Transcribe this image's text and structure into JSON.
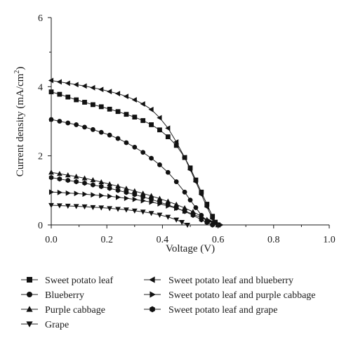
{
  "chart_data": {
    "type": "line",
    "xlabel": "Voltage (V)",
    "ylabel_main": "Current density (mA/cm",
    "ylabel_sup": "2",
    "ylabel_tail": ")",
    "xlim": [
      0.0,
      1.0
    ],
    "ylim": [
      0,
      6
    ],
    "xticks": [
      "0.0",
      "0.2",
      "0.4",
      "0.6",
      "0.8",
      "1.0"
    ],
    "yticks": [
      "0",
      "2",
      "4",
      "6"
    ],
    "grid": false,
    "legend_position": "below",
    "series": [
      {
        "name": "Sweet potato leaf",
        "marker": "square",
        "x": [
          0.0,
          0.03,
          0.06,
          0.09,
          0.12,
          0.15,
          0.18,
          0.21,
          0.24,
          0.27,
          0.3,
          0.33,
          0.36,
          0.39,
          0.42,
          0.45,
          0.48,
          0.5,
          0.52,
          0.54,
          0.56,
          0.58,
          0.59,
          0.6
        ],
        "y": [
          3.85,
          3.78,
          3.7,
          3.62,
          3.55,
          3.48,
          3.42,
          3.35,
          3.28,
          3.2,
          3.12,
          3.02,
          2.9,
          2.75,
          2.55,
          2.3,
          1.95,
          1.65,
          1.3,
          0.95,
          0.6,
          0.25,
          0.08,
          0.0
        ]
      },
      {
        "name": "Blueberry",
        "marker": "circle",
        "x": [
          0.0,
          0.03,
          0.06,
          0.09,
          0.12,
          0.15,
          0.18,
          0.21,
          0.24,
          0.27,
          0.3,
          0.33,
          0.36,
          0.39,
          0.42,
          0.45,
          0.48,
          0.5,
          0.52,
          0.54,
          0.56,
          0.58
        ],
        "y": [
          3.05,
          3.0,
          2.95,
          2.9,
          2.83,
          2.76,
          2.68,
          2.6,
          2.5,
          2.38,
          2.25,
          2.1,
          1.93,
          1.74,
          1.52,
          1.25,
          0.95,
          0.72,
          0.5,
          0.28,
          0.08,
          0.0
        ]
      },
      {
        "name": "Purple cabbage",
        "marker": "triangle-up",
        "x": [
          0.0,
          0.03,
          0.06,
          0.09,
          0.12,
          0.15,
          0.18,
          0.21,
          0.24,
          0.27,
          0.3,
          0.33,
          0.36,
          0.39,
          0.42,
          0.45,
          0.48,
          0.51,
          0.54,
          0.56,
          0.58,
          0.6
        ],
        "y": [
          1.52,
          1.48,
          1.44,
          1.4,
          1.35,
          1.3,
          1.24,
          1.18,
          1.12,
          1.05,
          0.98,
          0.91,
          0.84,
          0.76,
          0.68,
          0.59,
          0.49,
          0.38,
          0.25,
          0.15,
          0.06,
          0.0
        ]
      },
      {
        "name": "Grape",
        "marker": "triangle-down",
        "x": [
          0.0,
          0.03,
          0.06,
          0.09,
          0.12,
          0.15,
          0.18,
          0.21,
          0.24,
          0.27,
          0.3,
          0.33,
          0.36,
          0.39,
          0.42,
          0.45,
          0.47,
          0.49
        ],
        "y": [
          0.57,
          0.56,
          0.55,
          0.54,
          0.53,
          0.51,
          0.5,
          0.48,
          0.46,
          0.44,
          0.41,
          0.38,
          0.34,
          0.29,
          0.23,
          0.15,
          0.08,
          0.0
        ]
      },
      {
        "name": "Sweet potato leaf and blueberry",
        "marker": "triangle-left",
        "x": [
          0.0,
          0.03,
          0.06,
          0.09,
          0.12,
          0.15,
          0.18,
          0.21,
          0.24,
          0.27,
          0.3,
          0.33,
          0.36,
          0.39,
          0.42,
          0.45,
          0.48,
          0.5,
          0.52,
          0.54,
          0.56,
          0.58,
          0.6
        ],
        "y": [
          4.18,
          4.14,
          4.1,
          4.06,
          4.02,
          3.97,
          3.92,
          3.86,
          3.8,
          3.72,
          3.62,
          3.5,
          3.34,
          3.1,
          2.8,
          2.4,
          1.95,
          1.6,
          1.25,
          0.88,
          0.52,
          0.18,
          0.0
        ]
      },
      {
        "name": "Sweet potato leaf and purple cabbage",
        "marker": "triangle-right",
        "x": [
          0.0,
          0.03,
          0.06,
          0.09,
          0.12,
          0.15,
          0.18,
          0.21,
          0.24,
          0.27,
          0.3,
          0.33,
          0.36,
          0.39,
          0.42,
          0.45,
          0.48,
          0.51,
          0.54,
          0.57,
          0.59,
          0.61
        ],
        "y": [
          0.95,
          0.94,
          0.92,
          0.91,
          0.89,
          0.87,
          0.85,
          0.83,
          0.8,
          0.77,
          0.74,
          0.7,
          0.66,
          0.61,
          0.55,
          0.48,
          0.4,
          0.31,
          0.21,
          0.11,
          0.05,
          0.0
        ]
      },
      {
        "name": "Sweet potato leaf and grape",
        "marker": "hexagon",
        "x": [
          0.0,
          0.03,
          0.06,
          0.09,
          0.12,
          0.15,
          0.18,
          0.21,
          0.24,
          0.27,
          0.3,
          0.33,
          0.36,
          0.39,
          0.42,
          0.45,
          0.48,
          0.51,
          0.54,
          0.56,
          0.58
        ],
        "y": [
          1.37,
          1.33,
          1.29,
          1.25,
          1.21,
          1.16,
          1.11,
          1.06,
          1.0,
          0.94,
          0.88,
          0.81,
          0.74,
          0.66,
          0.58,
          0.49,
          0.39,
          0.28,
          0.15,
          0.07,
          0.0
        ]
      }
    ]
  }
}
